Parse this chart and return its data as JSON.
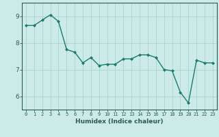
{
  "x": [
    0,
    1,
    2,
    3,
    4,
    5,
    6,
    7,
    8,
    9,
    10,
    11,
    12,
    13,
    14,
    15,
    16,
    17,
    18,
    19,
    20,
    21,
    22,
    23
  ],
  "y": [
    8.65,
    8.65,
    8.85,
    9.05,
    8.8,
    7.75,
    7.65,
    7.25,
    7.45,
    7.15,
    7.2,
    7.2,
    7.4,
    7.4,
    7.55,
    7.55,
    7.45,
    7.0,
    6.95,
    6.15,
    5.75,
    7.35,
    7.25,
    7.25
  ],
  "line_color": "#1a7a6e",
  "marker": "D",
  "marker_size": 2,
  "bg_color": "#cceae7",
  "grid_color": "#aad4d0",
  "axis_color": "#2a5a55",
  "xlabel": "Humidex (Indice chaleur)",
  "ylim": [
    5.5,
    9.5
  ],
  "yticks": [
    6,
    7,
    8,
    9
  ],
  "xlim": [
    -0.5,
    23.5
  ],
  "xticks": [
    0,
    1,
    2,
    3,
    4,
    5,
    6,
    7,
    8,
    9,
    10,
    11,
    12,
    13,
    14,
    15,
    16,
    17,
    18,
    19,
    20,
    21,
    22,
    23
  ]
}
